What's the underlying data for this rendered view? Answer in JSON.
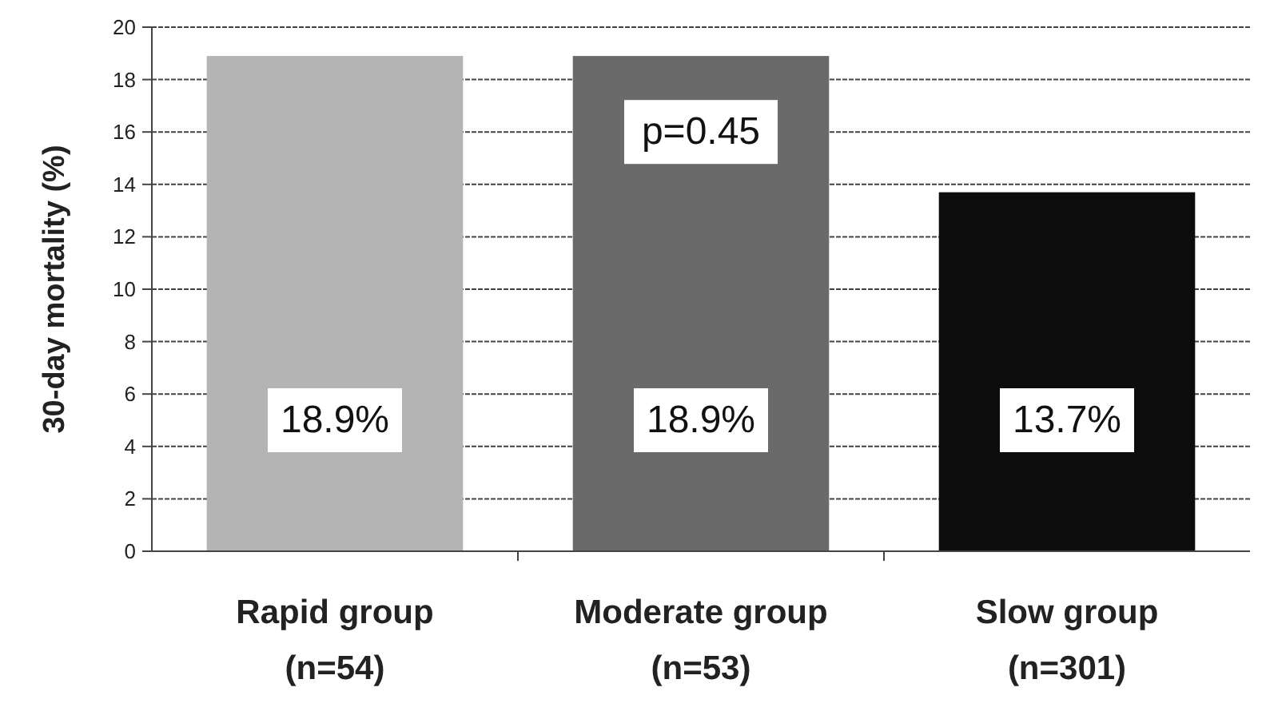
{
  "chart_data": {
    "type": "bar",
    "ylabel": "30-day mortality (%)",
    "categories": [
      "Rapid group\n(n=54)",
      "Moderate group\n(n=53)",
      "Slow group\n(n=301)"
    ],
    "values": [
      18.9,
      18.9,
      13.7
    ],
    "colors": [
      "#b4b4b4",
      "#6a6a6a",
      "#0c0c0c"
    ],
    "value_labels": [
      "18.9%",
      "18.9%",
      "13.7%"
    ],
    "ylim": [
      0,
      20
    ],
    "yticks": [
      0,
      2,
      4,
      6,
      8,
      10,
      12,
      14,
      16,
      18,
      20
    ],
    "grid": "y",
    "annotations": [
      "p=0.45"
    ]
  }
}
